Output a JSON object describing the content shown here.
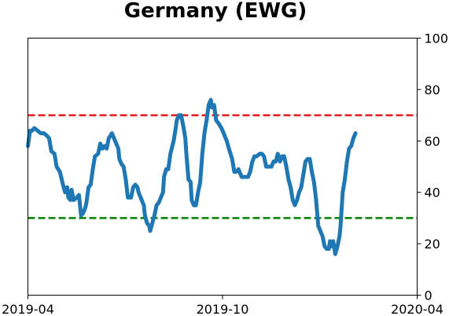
{
  "chart_data": {
    "type": "line",
    "title": "Germany (EWG)",
    "xlabel": "",
    "ylabel": "",
    "x_range": [
      "2019-04-01",
      "2020-04-01"
    ],
    "x_ticks": [
      {
        "label": "2019-04",
        "date": "2019-04-01"
      },
      {
        "label": "2019-10",
        "date": "2019-10-01"
      },
      {
        "label": "2020-04",
        "date": "2020-04-01"
      }
    ],
    "y_axis_side": "right",
    "ylim": [
      0,
      100
    ],
    "y_ticks": [
      0,
      20,
      40,
      60,
      80,
      100
    ],
    "grid": false,
    "legend": "none",
    "reference_lines": [
      {
        "y": 70,
        "color": "#e41a1c",
        "style": "dashed"
      },
      {
        "y": 30,
        "color": "#008000",
        "style": "dashed"
      }
    ],
    "series": [
      {
        "color": "#1f77b4",
        "points": [
          [
            "2019-04-01",
            58
          ],
          [
            "2019-04-03",
            64
          ],
          [
            "2019-04-05",
            64
          ],
          [
            "2019-04-07",
            65
          ],
          [
            "2019-04-10",
            64
          ],
          [
            "2019-04-13",
            63
          ],
          [
            "2019-04-16",
            63
          ],
          [
            "2019-04-19",
            62
          ],
          [
            "2019-04-21",
            61
          ],
          [
            "2019-04-23",
            56
          ],
          [
            "2019-04-26",
            55
          ],
          [
            "2019-04-28",
            50
          ],
          [
            "2019-05-01",
            48
          ],
          [
            "2019-05-04",
            43
          ],
          [
            "2019-05-06",
            40
          ],
          [
            "2019-05-08",
            42
          ],
          [
            "2019-05-09",
            38
          ],
          [
            "2019-05-11",
            37
          ],
          [
            "2019-05-12",
            41
          ],
          [
            "2019-05-14",
            37
          ],
          [
            "2019-05-17",
            38
          ],
          [
            "2019-05-19",
            39
          ],
          [
            "2019-05-21",
            31
          ],
          [
            "2019-05-23",
            32
          ],
          [
            "2019-05-25",
            34
          ],
          [
            "2019-05-26",
            36
          ],
          [
            "2019-05-28",
            42
          ],
          [
            "2019-05-30",
            43
          ],
          [
            "2019-06-01",
            49
          ],
          [
            "2019-06-03",
            54
          ],
          [
            "2019-06-06",
            55
          ],
          [
            "2019-06-08",
            59
          ],
          [
            "2019-06-10",
            57
          ],
          [
            "2019-06-12",
            58
          ],
          [
            "2019-06-14",
            57
          ],
          [
            "2019-06-16",
            61
          ],
          [
            "2019-06-19",
            63
          ],
          [
            "2019-06-21",
            61
          ],
          [
            "2019-06-23",
            59
          ],
          [
            "2019-06-25",
            57
          ],
          [
            "2019-06-26",
            53
          ],
          [
            "2019-06-28",
            51
          ],
          [
            "2019-06-30",
            50
          ],
          [
            "2019-07-02",
            45
          ],
          [
            "2019-07-04",
            38
          ],
          [
            "2019-07-07",
            38
          ],
          [
            "2019-07-09",
            42
          ],
          [
            "2019-07-11",
            43
          ],
          [
            "2019-07-13",
            42
          ],
          [
            "2019-07-14",
            40
          ],
          [
            "2019-07-17",
            37
          ],
          [
            "2019-07-19",
            35
          ],
          [
            "2019-07-20",
            31
          ],
          [
            "2019-07-22",
            28
          ],
          [
            "2019-07-24",
            27
          ],
          [
            "2019-07-25",
            25
          ],
          [
            "2019-07-27",
            28
          ],
          [
            "2019-07-29",
            31
          ],
          [
            "2019-07-31",
            35
          ],
          [
            "2019-08-02",
            36
          ],
          [
            "2019-08-04",
            38
          ],
          [
            "2019-08-06",
            40
          ],
          [
            "2019-08-07",
            46
          ],
          [
            "2019-08-09",
            49
          ],
          [
            "2019-08-11",
            49
          ],
          [
            "2019-08-13",
            55
          ],
          [
            "2019-08-16",
            60
          ],
          [
            "2019-08-18",
            65
          ],
          [
            "2019-08-19",
            68
          ],
          [
            "2019-08-21",
            70
          ],
          [
            "2019-08-23",
            70
          ],
          [
            "2019-08-25",
            66
          ],
          [
            "2019-08-27",
            61
          ],
          [
            "2019-08-28",
            55
          ],
          [
            "2019-08-30",
            45
          ],
          [
            "2019-09-01",
            44
          ],
          [
            "2019-09-02",
            37
          ],
          [
            "2019-09-04",
            35
          ],
          [
            "2019-09-06",
            35
          ],
          [
            "2019-09-08",
            40
          ],
          [
            "2019-09-10",
            44
          ],
          [
            "2019-09-12",
            55
          ],
          [
            "2019-09-14",
            63
          ],
          [
            "2019-09-16",
            68
          ],
          [
            "2019-09-18",
            74
          ],
          [
            "2019-09-20",
            76
          ],
          [
            "2019-09-21",
            73
          ],
          [
            "2019-09-23",
            74
          ],
          [
            "2019-09-25",
            68
          ],
          [
            "2019-09-27",
            67
          ],
          [
            "2019-09-30",
            65
          ],
          [
            "2019-10-02",
            63
          ],
          [
            "2019-10-05",
            60
          ],
          [
            "2019-10-07",
            57
          ],
          [
            "2019-10-10",
            53
          ],
          [
            "2019-10-12",
            48
          ],
          [
            "2019-10-14",
            48
          ],
          [
            "2019-10-16",
            49
          ],
          [
            "2019-10-17",
            48
          ],
          [
            "2019-10-19",
            46
          ],
          [
            "2019-10-21",
            46
          ],
          [
            "2019-10-23",
            46
          ],
          [
            "2019-10-25",
            46
          ],
          [
            "2019-10-27",
            48
          ],
          [
            "2019-10-29",
            52
          ],
          [
            "2019-10-31",
            54
          ],
          [
            "2019-11-02",
            54
          ],
          [
            "2019-11-05",
            55
          ],
          [
            "2019-11-07",
            55
          ],
          [
            "2019-11-09",
            54
          ],
          [
            "2019-11-11",
            50
          ],
          [
            "2019-11-14",
            50
          ],
          [
            "2019-11-16",
            50
          ],
          [
            "2019-11-18",
            52
          ],
          [
            "2019-11-20",
            52
          ],
          [
            "2019-11-22",
            55
          ],
          [
            "2019-11-24",
            52
          ],
          [
            "2019-11-26",
            54
          ],
          [
            "2019-11-28",
            54
          ],
          [
            "2019-11-30",
            50
          ],
          [
            "2019-12-02",
            45
          ],
          [
            "2019-12-04",
            42
          ],
          [
            "2019-12-06",
            37
          ],
          [
            "2019-12-08",
            35
          ],
          [
            "2019-12-10",
            37
          ],
          [
            "2019-12-12",
            40
          ],
          [
            "2019-12-14",
            42
          ],
          [
            "2019-12-16",
            47
          ],
          [
            "2019-12-18",
            52
          ],
          [
            "2019-12-20",
            53
          ],
          [
            "2019-12-22",
            53
          ],
          [
            "2019-12-24",
            48
          ],
          [
            "2019-12-26",
            44
          ],
          [
            "2019-12-28",
            37
          ],
          [
            "2019-12-30",
            27
          ],
          [
            "2020-01-01",
            25
          ],
          [
            "2020-01-03",
            23
          ],
          [
            "2020-01-05",
            19
          ],
          [
            "2020-01-07",
            18
          ],
          [
            "2020-01-09",
            18
          ],
          [
            "2020-01-10",
            21
          ],
          [
            "2020-01-12",
            19
          ],
          [
            "2020-01-13",
            21
          ],
          [
            "2020-01-15",
            16
          ],
          [
            "2020-01-17",
            19
          ],
          [
            "2020-01-19",
            23
          ],
          [
            "2020-01-20",
            27
          ],
          [
            "2020-01-22",
            40
          ],
          [
            "2020-01-24",
            45
          ],
          [
            "2020-01-26",
            52
          ],
          [
            "2020-01-28",
            57
          ],
          [
            "2020-01-30",
            58
          ],
          [
            "2020-02-01",
            61
          ],
          [
            "2020-02-03",
            63
          ]
        ]
      }
    ]
  }
}
